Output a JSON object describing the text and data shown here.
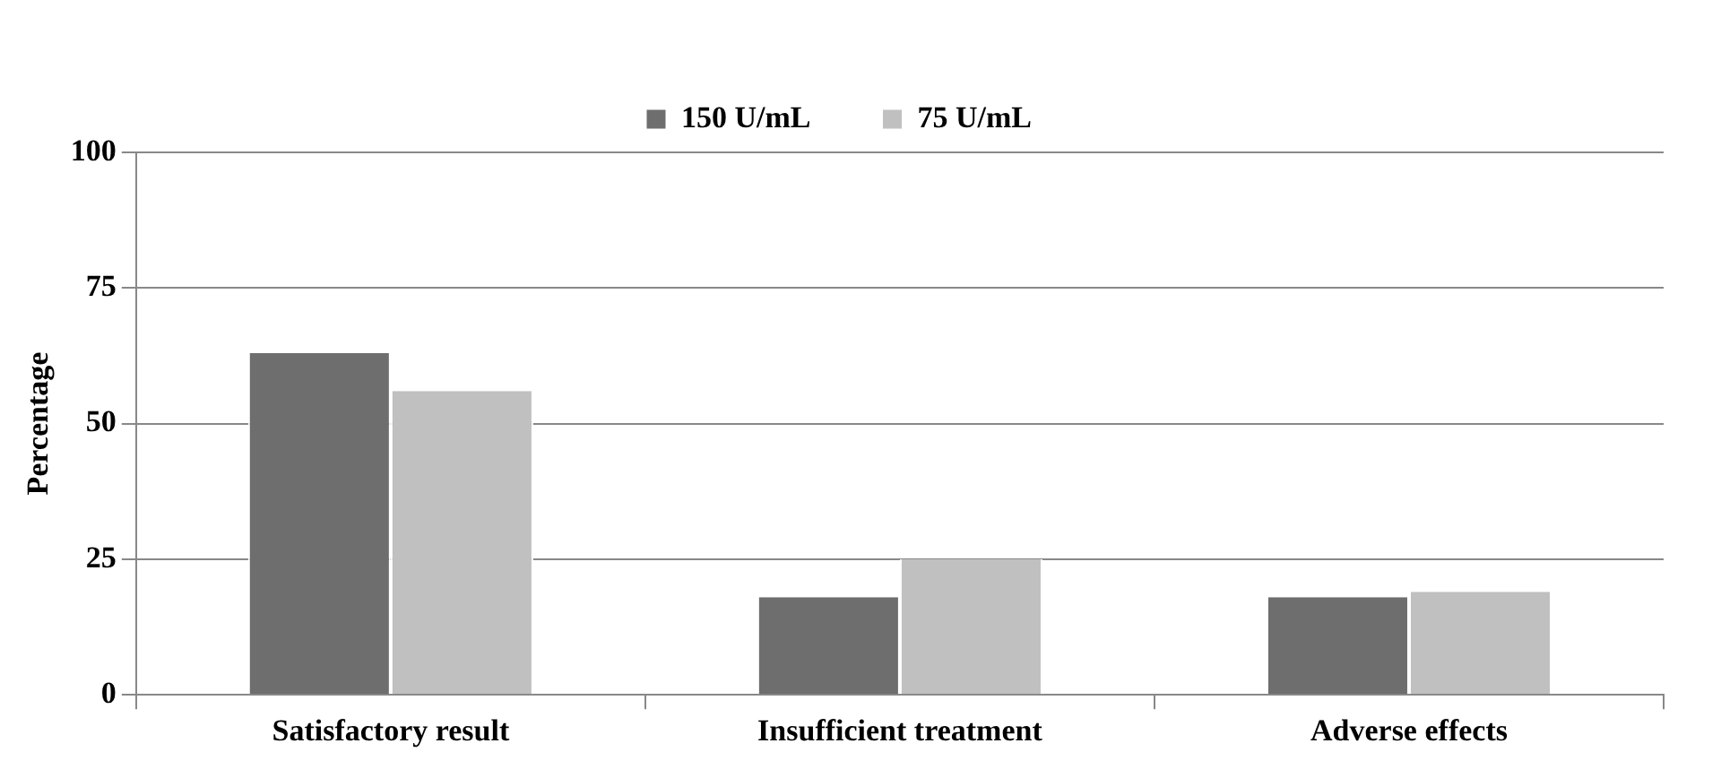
{
  "chart_data": {
    "type": "bar",
    "ylabel": "Percentage",
    "categories": [
      "Satisfactory result",
      "Insufficient treatment",
      "Adverse effects"
    ],
    "series": [
      {
        "name": "150 U/mL",
        "color": "#6e6e6e",
        "values": [
          63,
          18,
          18
        ]
      },
      {
        "name": "75 U/mL",
        "color": "#c0c0c0",
        "values": [
          56,
          25,
          19
        ]
      }
    ],
    "ylim": [
      0,
      100
    ],
    "yticks": [
      0,
      25,
      50,
      75,
      100
    ],
    "grid": "y",
    "legend": "top"
  }
}
